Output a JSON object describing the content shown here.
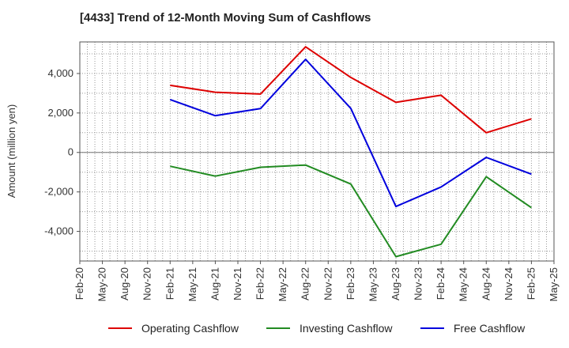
{
  "chart_data": {
    "type": "line",
    "title": "[4433]  Trend of 12-Month Moving Sum of Cashflows",
    "ylabel": "Amount (million yen)",
    "xlabel": "",
    "x_ticks": [
      "Feb-20",
      "May-20",
      "Aug-20",
      "Nov-20",
      "Feb-21",
      "May-21",
      "Aug-21",
      "Nov-21",
      "Feb-22",
      "May-22",
      "Aug-22",
      "Nov-22",
      "Feb-23",
      "May-23",
      "Aug-23",
      "Nov-23",
      "Feb-24",
      "May-24",
      "Aug-24",
      "Nov-24",
      "Feb-25",
      "May-25"
    ],
    "y_ticks": [
      4000,
      2000,
      0,
      -2000,
      -4000
    ],
    "y_tick_labels": [
      "4,000",
      "2,000",
      "0",
      "-2,000",
      "-4,000"
    ],
    "ylim": [
      -5500,
      5600
    ],
    "grid": true,
    "legend_position": "bottom",
    "x": [
      "Feb-21",
      "Aug-21",
      "Feb-22",
      "Aug-22",
      "Feb-23",
      "Aug-23",
      "Feb-24",
      "Aug-24",
      "Feb-25"
    ],
    "series": [
      {
        "name": "Operating Cashflow",
        "color": "#dd0000",
        "values": [
          3400,
          3050,
          2960,
          5350,
          3800,
          2540,
          2900,
          1000,
          1700
        ]
      },
      {
        "name": "Investing Cashflow",
        "color": "#228b22",
        "values": [
          -700,
          -1200,
          -750,
          -640,
          -1600,
          -5280,
          -4650,
          -1230,
          -2800
        ]
      },
      {
        "name": "Free Cashflow",
        "color": "#0000dd",
        "values": [
          2680,
          1860,
          2220,
          4720,
          2230,
          -2740,
          -1750,
          -250,
          -1100
        ]
      }
    ]
  }
}
